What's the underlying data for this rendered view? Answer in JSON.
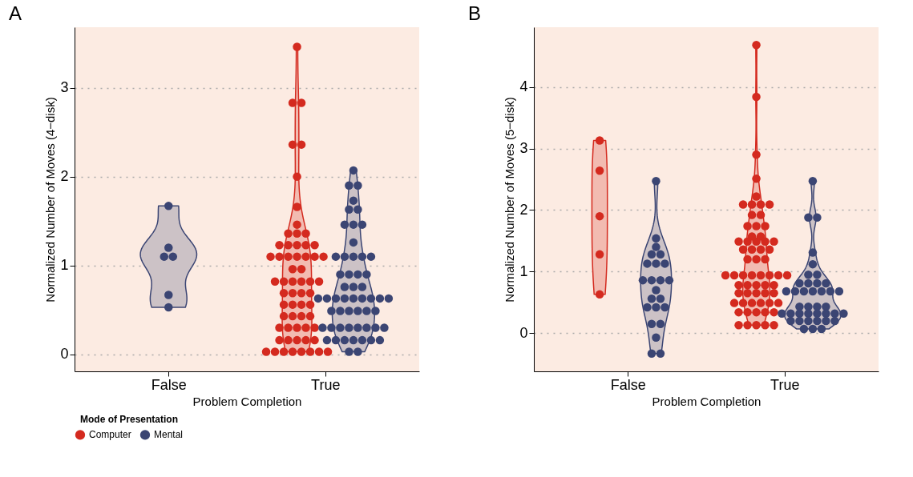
{
  "chart_data": [
    {
      "type": "scatter",
      "title": "A",
      "xlabel": "Problem Completion",
      "ylabel": "Normalized Number of Moves (4−disk)",
      "categories": [
        "False",
        "True"
      ],
      "ylim": [
        -0.19,
        3.68
      ],
      "yticks": [
        0,
        1,
        2,
        3
      ],
      "grid": "y",
      "marker": "circle",
      "legend": "bottom",
      "legend_title": "Mode of Presentation",
      "series": [
        {
          "name": "Computer",
          "color": "#d42a1f",
          "x": [
            "True",
            "True",
            "True",
            "True",
            "True",
            "True",
            "True",
            "True",
            "True",
            "True",
            "True",
            "True",
            "True",
            "True",
            "True",
            "True",
            "True",
            "True",
            "True",
            "True",
            "True",
            "True",
            "True",
            "True",
            "True",
            "True",
            "True",
            "True",
            "True",
            "True",
            "True",
            "True",
            "True",
            "True",
            "True",
            "True",
            "True",
            "True",
            "True",
            "True",
            "True",
            "True",
            "True",
            "True",
            "True",
            "True",
            "True",
            "True",
            "True",
            "True",
            "True",
            "True",
            "True",
            "True",
            "True",
            "True",
            "True",
            "True",
            "True",
            "True",
            "True"
          ],
          "values": [
            3.46,
            2.83,
            2.83,
            2.36,
            2.36,
            2.0,
            1.66,
            1.46,
            1.36,
            1.36,
            1.36,
            1.23,
            1.23,
            1.23,
            1.23,
            1.23,
            1.1,
            1.1,
            1.1,
            1.1,
            1.1,
            1.1,
            1.1,
            0.96,
            0.96,
            0.82,
            0.82,
            0.82,
            0.82,
            0.82,
            0.82,
            0.69,
            0.69,
            0.69,
            0.69,
            0.56,
            0.56,
            0.56,
            0.56,
            0.43,
            0.43,
            0.43,
            0.43,
            0.3,
            0.3,
            0.3,
            0.3,
            0.3,
            0.16,
            0.16,
            0.16,
            0.16,
            0.16,
            0.03,
            0.03,
            0.03,
            0.03,
            0.03,
            0.03,
            0.03,
            0.03
          ]
        },
        {
          "name": "Mental",
          "color": "#3b4573",
          "x": [
            "False",
            "False",
            "False",
            "False",
            "False",
            "False",
            "True",
            "True",
            "True",
            "True",
            "True",
            "True",
            "True",
            "True",
            "True",
            "True",
            "True",
            "True",
            "True",
            "True",
            "True",
            "True",
            "True",
            "True",
            "True",
            "True",
            "True",
            "True",
            "True",
            "True",
            "True",
            "True",
            "True",
            "True",
            "True",
            "True",
            "True",
            "True",
            "True",
            "True",
            "True",
            "True",
            "True",
            "True",
            "True",
            "True",
            "True",
            "True",
            "True",
            "True",
            "True",
            "True",
            "True",
            "True",
            "True",
            "True",
            "True",
            "True",
            "True",
            "True"
          ],
          "values": [
            1.67,
            1.2,
            1.1,
            1.1,
            0.67,
            0.53,
            2.07,
            1.9,
            1.9,
            1.73,
            1.63,
            1.63,
            1.46,
            1.46,
            1.46,
            1.26,
            1.1,
            1.1,
            1.1,
            1.1,
            1.1,
            0.9,
            0.9,
            0.9,
            0.9,
            0.76,
            0.76,
            0.76,
            0.63,
            0.63,
            0.63,
            0.63,
            0.63,
            0.63,
            0.63,
            0.63,
            0.63,
            0.49,
            0.49,
            0.49,
            0.49,
            0.49,
            0.49,
            0.3,
            0.3,
            0.3,
            0.3,
            0.3,
            0.3,
            0.3,
            0.3,
            0.16,
            0.16,
            0.16,
            0.16,
            0.16,
            0.16,
            0.16,
            0.03,
            0.03
          ]
        }
      ]
    },
    {
      "type": "scatter",
      "title": "B",
      "xlabel": "Problem Completion",
      "ylabel": "Normalized Number of Moves (5−disk)",
      "categories": [
        "False",
        "True"
      ],
      "ylim": [
        -0.62,
        4.97
      ],
      "yticks": [
        0,
        1,
        2,
        3,
        4
      ],
      "grid": "y",
      "marker": "circle",
      "series": [
        {
          "color": "#d42a1f",
          "x": [
            "False",
            "False",
            "False",
            "False",
            "False",
            "True",
            "True",
            "True",
            "True",
            "True",
            "True",
            "True",
            "True",
            "True",
            "True",
            "True",
            "True",
            "True",
            "True",
            "True",
            "True",
            "True",
            "True",
            "True",
            "True",
            "True",
            "True",
            "True",
            "True",
            "True",
            "True",
            "True",
            "True",
            "True",
            "True",
            "True",
            "True",
            "True",
            "True",
            "True",
            "True",
            "True",
            "True",
            "True",
            "True",
            "True",
            "True",
            "True",
            "True",
            "True",
            "True",
            "True",
            "True",
            "True",
            "True",
            "True",
            "True",
            "True",
            "True",
            "True",
            "True",
            "True",
            "True",
            "True",
            "True",
            "True",
            "True"
          ],
          "values": [
            3.13,
            2.64,
            1.9,
            1.28,
            0.63,
            4.68,
            3.84,
            2.9,
            2.51,
            2.22,
            2.09,
            2.09,
            2.09,
            2.09,
            1.92,
            1.92,
            1.74,
            1.74,
            1.74,
            1.57,
            1.57,
            1.49,
            1.49,
            1.49,
            1.49,
            1.49,
            1.36,
            1.36,
            1.36,
            1.36,
            1.2,
            1.2,
            1.2,
            0.94,
            0.94,
            0.94,
            0.94,
            0.94,
            0.94,
            0.94,
            0.94,
            0.78,
            0.78,
            0.78,
            0.78,
            0.78,
            0.65,
            0.65,
            0.65,
            0.65,
            0.65,
            0.49,
            0.49,
            0.49,
            0.49,
            0.49,
            0.49,
            0.34,
            0.34,
            0.34,
            0.34,
            0.34,
            0.13,
            0.13,
            0.13,
            0.13,
            0.13
          ]
        },
        {
          "color": "#3b4573",
          "x": [
            "False",
            "False",
            "False",
            "False",
            "False",
            "False",
            "False",
            "False",
            "False",
            "False",
            "False",
            "False",
            "False",
            "False",
            "False",
            "False",
            "False",
            "False",
            "False",
            "False",
            "False",
            "False",
            "False",
            "True",
            "True",
            "True",
            "True",
            "True",
            "True",
            "True",
            "True",
            "True",
            "True",
            "True",
            "True",
            "True",
            "True",
            "True",
            "True",
            "True",
            "True",
            "True",
            "True",
            "True",
            "True",
            "True",
            "True",
            "True",
            "True",
            "True",
            "True",
            "True",
            "True",
            "True",
            "True",
            "True",
            "True",
            "True",
            "True",
            "True",
            "True",
            "True"
          ],
          "values": [
            2.47,
            1.54,
            1.4,
            1.28,
            1.28,
            1.13,
            1.13,
            1.13,
            0.86,
            0.86,
            0.86,
            0.86,
            0.7,
            0.56,
            0.56,
            0.42,
            0.42,
            0.42,
            0.15,
            0.15,
            -0.07,
            -0.33,
            -0.33,
            2.47,
            1.88,
            1.88,
            1.31,
            1.12,
            0.95,
            0.95,
            0.81,
            0.81,
            0.81,
            0.81,
            0.68,
            0.68,
            0.68,
            0.68,
            0.68,
            0.68,
            0.68,
            0.43,
            0.43,
            0.43,
            0.43,
            0.32,
            0.32,
            0.32,
            0.32,
            0.32,
            0.32,
            0.32,
            0.32,
            0.2,
            0.2,
            0.2,
            0.2,
            0.2,
            0.2,
            0.07,
            0.07,
            0.07
          ]
        }
      ]
    }
  ]
}
